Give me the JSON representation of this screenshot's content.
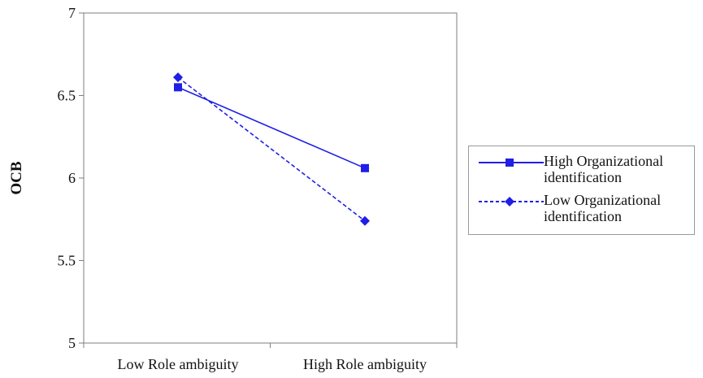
{
  "chart_data": {
    "type": "line",
    "categories": [
      "Low Role ambiguity",
      "High Role ambiguity"
    ],
    "ylabel": "OCB",
    "xlabel": "",
    "ylim": [
      5,
      7
    ],
    "yticks": [
      "5",
      "5.5",
      "6",
      "6.5",
      "7"
    ],
    "grid": false,
    "legend_position": "right",
    "series": [
      {
        "name": "High Organizational identification",
        "values": [
          6.55,
          6.06
        ],
        "color": "#1f1fe6",
        "line": "solid",
        "marker": "square"
      },
      {
        "name": "Low Organizational identification",
        "values": [
          6.61,
          5.74
        ],
        "color": "#1f1fe6",
        "line": "dashed",
        "marker": "diamond"
      }
    ]
  }
}
